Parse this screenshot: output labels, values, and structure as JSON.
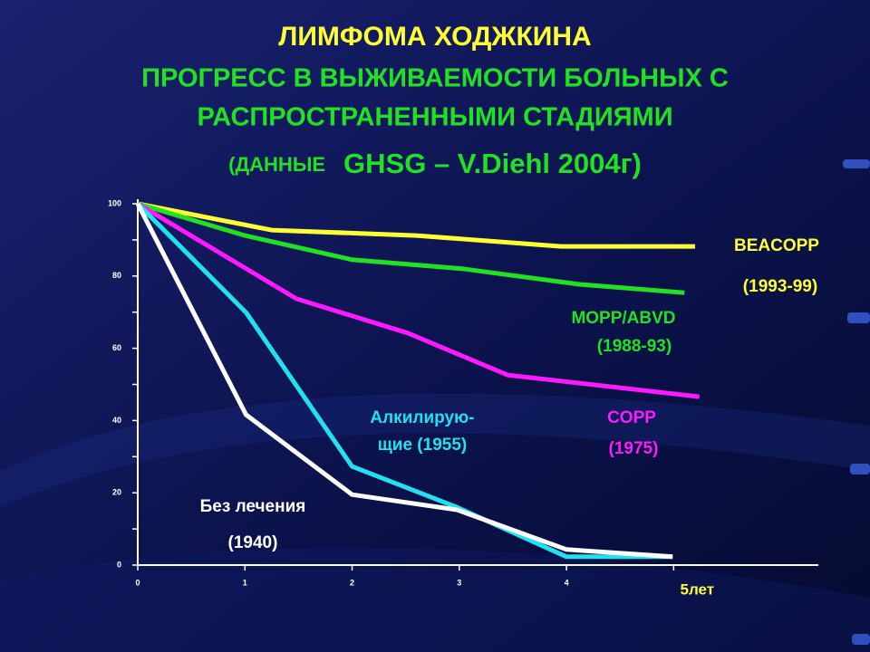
{
  "chart_data": {
    "type": "line",
    "title": "ЛИМФОМА  ХОДЖКИНА",
    "subtitle": [
      "ПРОГРЕСС  В  ВЫЖИВАЕМОСТИ БОЛЬНЫХ  С",
      "РАСПРОСТРАНЕННЫМИ  СТАДИЯМИ"
    ],
    "source": [
      "(ДАННЫЕ",
      "GHSG – V.Diehl 2004г)"
    ],
    "xlim": [
      0,
      6.35
    ],
    "xticks": [
      0,
      1,
      2,
      3,
      4,
      {
        "value": 5,
        "label": "5лет"
      }
    ],
    "ylim": [
      0,
      100
    ],
    "yticks": [
      0,
      20,
      40,
      60,
      80,
      100
    ],
    "yminorticks": [
      10,
      30,
      50,
      70,
      90
    ],
    "series": [
      {
        "label": [
          "BEACOPP",
          "(1993-99)"
        ],
        "color": "#ffff33",
        "x": [
          0,
          1.25,
          2.6,
          3.95,
          5.2
        ],
        "values": [
          100,
          92.7,
          91.2,
          88.2,
          88.2
        ]
      },
      {
        "label": [
          "MOPP/ABVD",
          "(1988-93)"
        ],
        "color": "#22e022",
        "x": [
          0,
          1,
          2,
          3.03,
          4.12,
          5.1
        ],
        "values": [
          100,
          91.2,
          84.5,
          82,
          77.7,
          75.4
        ]
      },
      {
        "label": [
          "COPP",
          "(1975)"
        ],
        "color": "#ff1aff",
        "x": [
          0,
          1.48,
          2.52,
          3.45,
          5.24
        ],
        "values": [
          100,
          73.7,
          64.2,
          52.6,
          46.6
        ]
      },
      {
        "label": [
          "Алкилирую-",
          "щие (1955)"
        ],
        "color": "#22e0f0",
        "x": [
          0,
          1.01,
          2,
          2.98,
          4,
          4.99
        ],
        "values": [
          100,
          69.9,
          27.3,
          16,
          2.3,
          2.3
        ]
      },
      {
        "label": [
          "Без  лечения",
          "(1940)"
        ],
        "color": "#ffffff",
        "x": [
          0,
          1.01,
          2,
          2.98,
          4,
          4.99
        ],
        "values": [
          100,
          41.6,
          19.5,
          15.3,
          4.3,
          2.3
        ]
      }
    ]
  }
}
